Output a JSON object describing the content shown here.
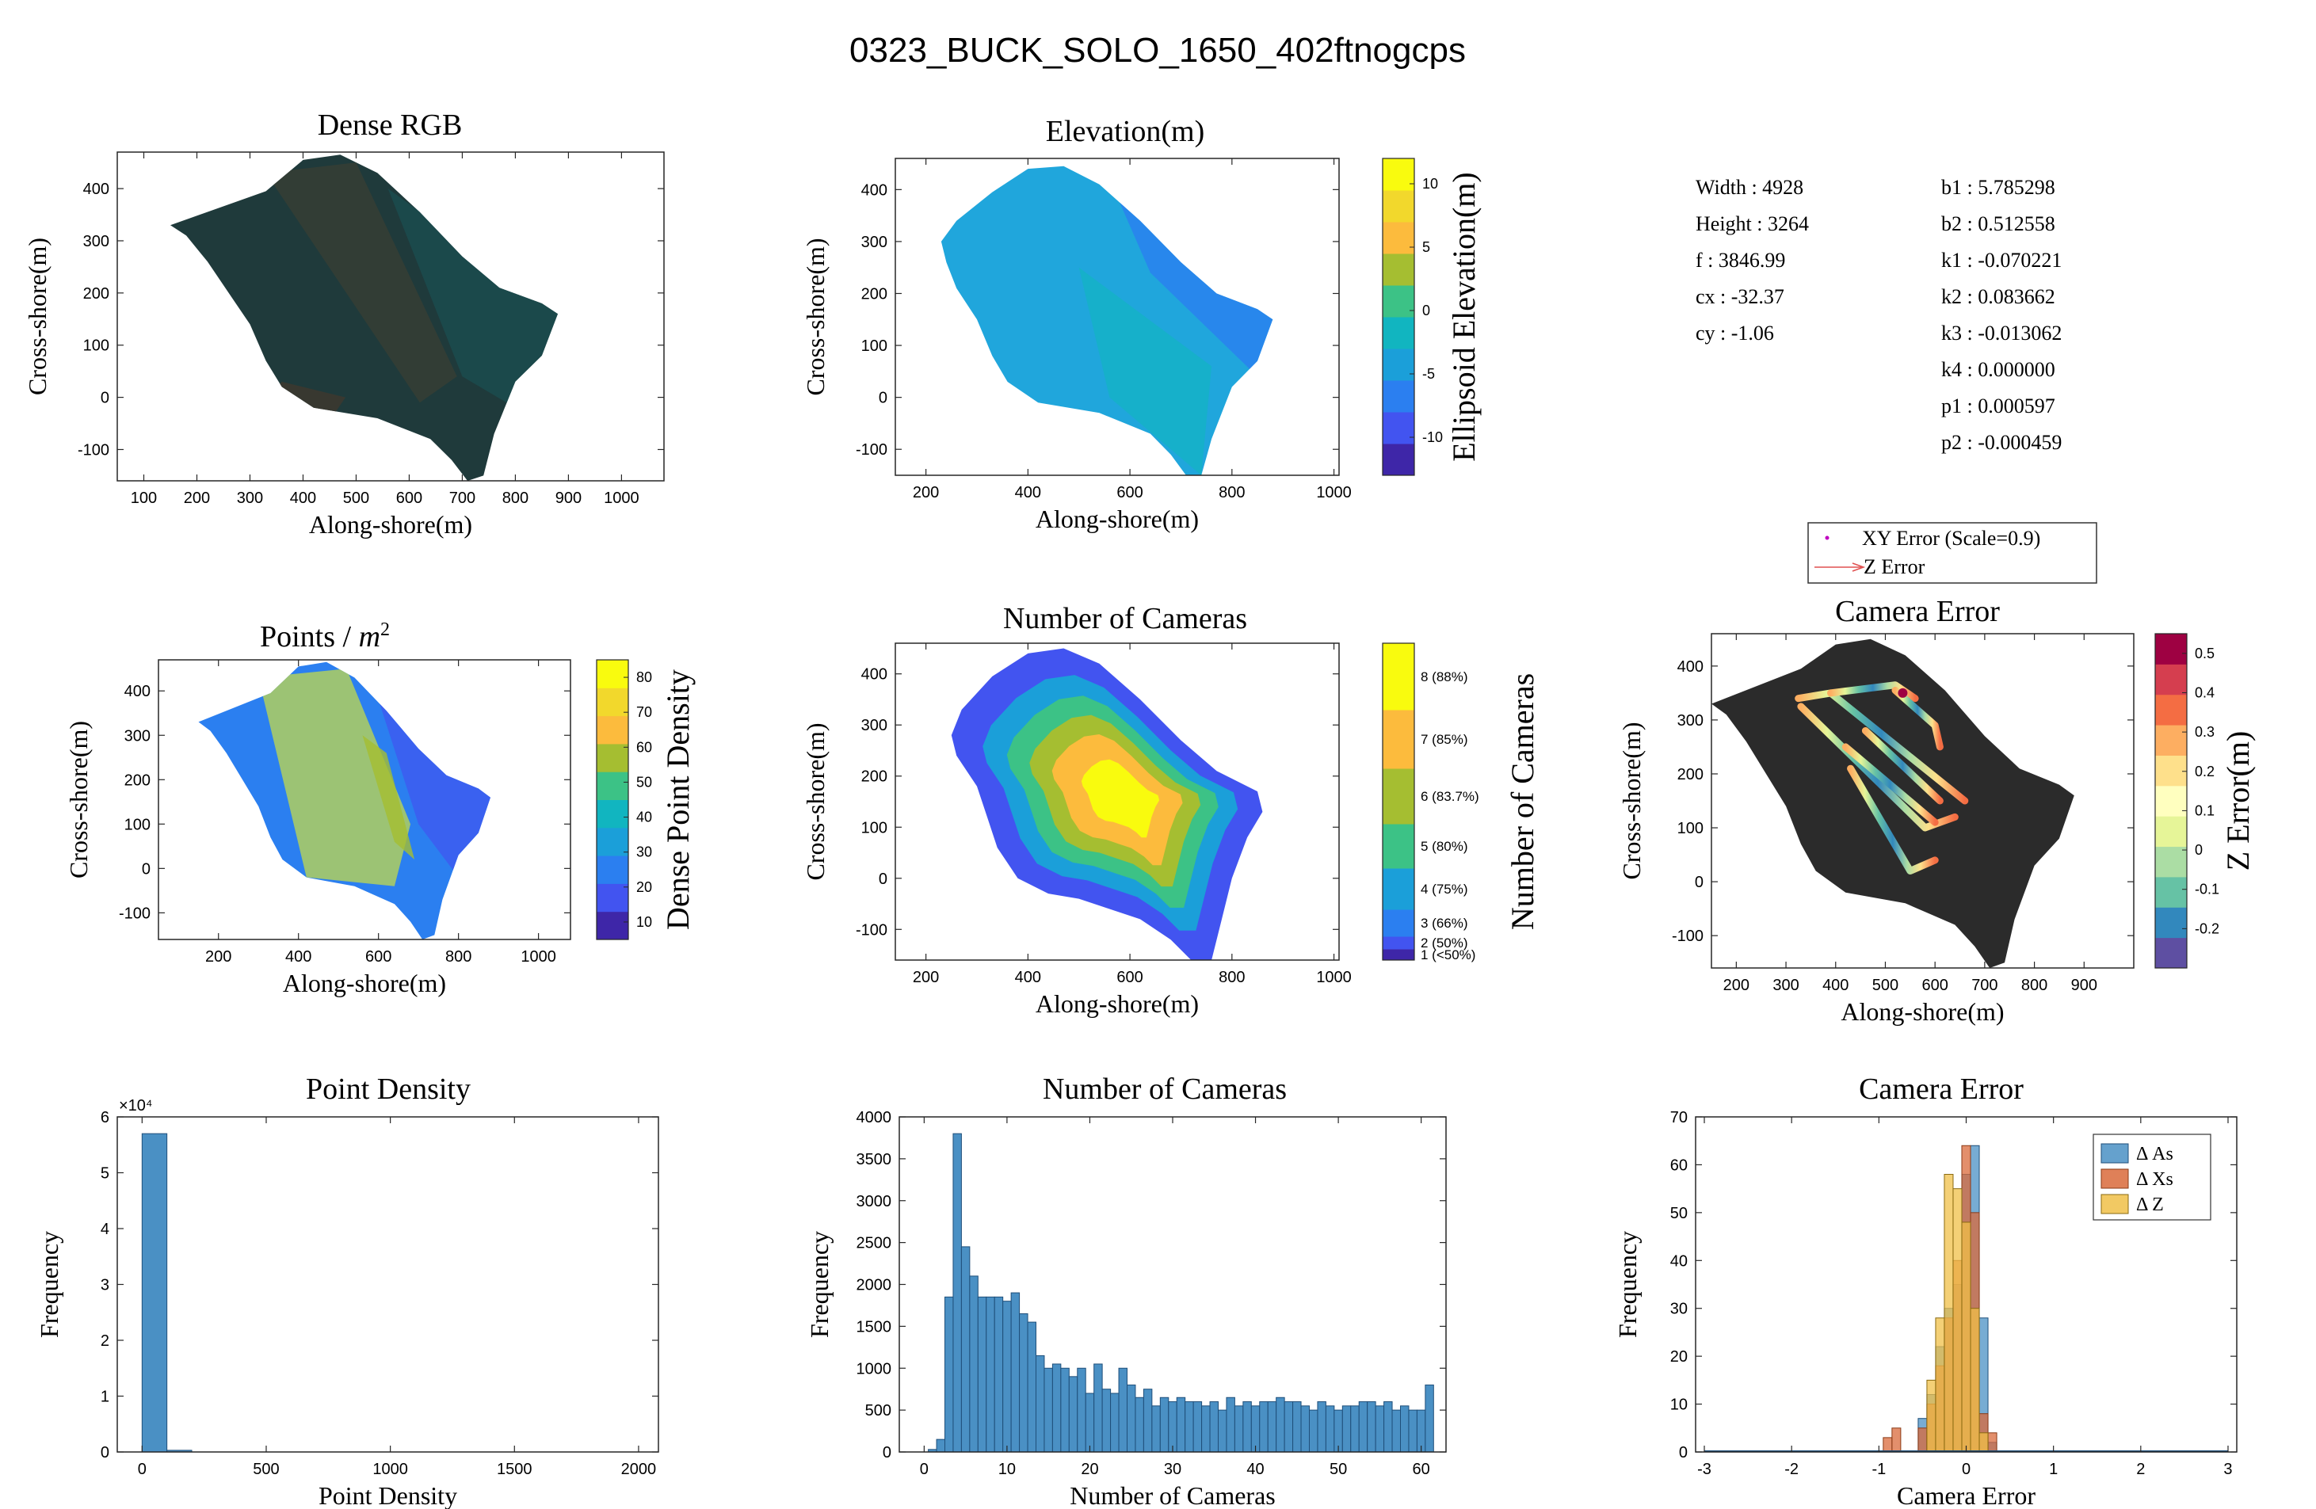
{
  "figure_title": "0323_BUCK_SOLO_1650_402ftnogcps",
  "colors": {
    "parula": [
      "#3e26a8",
      "#4254f0",
      "#2b7ff0",
      "#1b9fd9",
      "#11b5c0",
      "#3cc286",
      "#a5be31",
      "#fcbb3d",
      "#f2d82c",
      "#f9fb0e"
    ],
    "rdylbu": [
      "#5e4fa2",
      "#3288bd",
      "#66c2a5",
      "#abdda4",
      "#e6f598",
      "#ffffbf",
      "#fee08b",
      "#fdae61",
      "#f46d43",
      "#d53e4f",
      "#9e0142"
    ],
    "hist_as": "#4a90c4",
    "hist_xs": "#d96a3b",
    "hist_z": "#f0c048",
    "rgb_land": "#1f3a3b",
    "err_land": "#2b2b2b"
  },
  "params": {
    "left": [
      {
        "label": "Width : 4928"
      },
      {
        "label": "Height : 3264"
      },
      {
        "label": "f : 3846.99"
      },
      {
        "label": "cx : -32.37"
      },
      {
        "label": "cy : -1.06"
      }
    ],
    "right": [
      {
        "label": "b1 : 5.785298"
      },
      {
        "label": "b2 : 0.512558"
      },
      {
        "label": "k1 : -0.070221"
      },
      {
        "label": "k2 : 0.083662"
      },
      {
        "label": "k3 : -0.013062"
      },
      {
        "label": "k4 : 0.000000"
      },
      {
        "label": "p1 : 0.000597"
      },
      {
        "label": "p2 : -0.000459"
      }
    ]
  },
  "legend_cam_error": {
    "entries": [
      "XY Error (Scale=0.9)",
      "Z Error"
    ]
  },
  "chart_data": [
    {
      "id": "dense_rgb",
      "type": "heatmap",
      "title": "Dense RGB",
      "xlabel": "Along-shore(m)",
      "ylabel": "Cross-shore(m)",
      "xlim": [
        50,
        1080
      ],
      "ylim": [
        -160,
        470
      ],
      "xticks": [
        100,
        200,
        300,
        400,
        500,
        600,
        700,
        800,
        900,
        1000
      ],
      "yticks": [
        -100,
        0,
        100,
        200,
        300,
        400
      ],
      "outline_xy": [
        [
          330,
          395
        ],
        [
          400,
          455
        ],
        [
          470,
          465
        ],
        [
          540,
          430
        ],
        [
          620,
          355
        ],
        [
          700,
          270
        ],
        [
          770,
          210
        ],
        [
          850,
          180
        ],
        [
          880,
          160
        ],
        [
          850,
          80
        ],
        [
          800,
          30
        ],
        [
          760,
          -70
        ],
        [
          740,
          -150
        ],
        [
          710,
          -160
        ],
        [
          680,
          -120
        ],
        [
          640,
          -80
        ],
        [
          590,
          -60
        ],
        [
          540,
          -40
        ],
        [
          480,
          -30
        ],
        [
          420,
          -20
        ],
        [
          360,
          20
        ],
        [
          330,
          70
        ],
        [
          300,
          140
        ],
        [
          260,
          200
        ],
        [
          220,
          260
        ],
        [
          180,
          310
        ],
        [
          150,
          330
        ]
      ]
    },
    {
      "id": "elevation",
      "type": "heatmap",
      "title": "Elevation(m)",
      "xlabel": "Along-shore(m)",
      "ylabel": "Cross-shore(m)",
      "xlim": [
        140,
        1010
      ],
      "ylim": [
        -150,
        460
      ],
      "xticks": [
        200,
        400,
        600,
        800,
        1000
      ],
      "yticks": [
        -100,
        0,
        100,
        200,
        300,
        400
      ],
      "colorbar": {
        "label": "Ellipsoid Elevation(m)",
        "ticks": [
          -10,
          -5,
          0,
          5,
          10
        ],
        "lim": [
          -13,
          12
        ]
      },
      "outline_xy": [
        [
          330,
          395
        ],
        [
          400,
          440
        ],
        [
          470,
          445
        ],
        [
          540,
          410
        ],
        [
          620,
          340
        ],
        [
          700,
          260
        ],
        [
          770,
          200
        ],
        [
          850,
          170
        ],
        [
          880,
          150
        ],
        [
          850,
          70
        ],
        [
          800,
          20
        ],
        [
          760,
          -80
        ],
        [
          740,
          -150
        ],
        [
          710,
          -150
        ],
        [
          680,
          -110
        ],
        [
          640,
          -70
        ],
        [
          590,
          -50
        ],
        [
          540,
          -30
        ],
        [
          480,
          -20
        ],
        [
          420,
          -10
        ],
        [
          360,
          30
        ],
        [
          330,
          80
        ],
        [
          300,
          150
        ],
        [
          260,
          210
        ],
        [
          240,
          260
        ],
        [
          230,
          300
        ],
        [
          260,
          340
        ]
      ]
    },
    {
      "id": "points_per_m2",
      "type": "heatmap",
      "title": "Points / m²",
      "xlabel": "Along-shore(m)",
      "ylabel": "Cross-shore(m)",
      "xlim": [
        50,
        1080
      ],
      "ylim": [
        -160,
        470
      ],
      "xticks": [
        200,
        400,
        600,
        800,
        1000
      ],
      "yticks": [
        -100,
        0,
        100,
        200,
        300,
        400
      ],
      "colorbar": {
        "label": "Dense Point Density",
        "ticks": [
          10,
          20,
          30,
          40,
          50,
          60,
          70,
          80
        ],
        "lim": [
          5,
          85
        ]
      },
      "outline_xy": [
        [
          330,
          395
        ],
        [
          400,
          455
        ],
        [
          470,
          465
        ],
        [
          540,
          430
        ],
        [
          620,
          355
        ],
        [
          700,
          270
        ],
        [
          770,
          210
        ],
        [
          850,
          180
        ],
        [
          880,
          160
        ],
        [
          850,
          80
        ],
        [
          800,
          30
        ],
        [
          760,
          -70
        ],
        [
          740,
          -150
        ],
        [
          710,
          -160
        ],
        [
          680,
          -120
        ],
        [
          640,
          -80
        ],
        [
          590,
          -60
        ],
        [
          540,
          -40
        ],
        [
          480,
          -30
        ],
        [
          420,
          -20
        ],
        [
          360,
          20
        ],
        [
          330,
          70
        ],
        [
          300,
          140
        ],
        [
          260,
          200
        ],
        [
          220,
          260
        ],
        [
          180,
          310
        ],
        [
          150,
          330
        ]
      ]
    },
    {
      "id": "num_cameras_map",
      "type": "heatmap",
      "title": "Number of Cameras",
      "xlabel": "Along-shore(m)",
      "ylabel": "Cross-shore(m)",
      "xlim": [
        140,
        1010
      ],
      "ylim": [
        -160,
        460
      ],
      "xticks": [
        200,
        400,
        600,
        800,
        1000
      ],
      "yticks": [
        -100,
        0,
        100,
        200,
        300,
        400
      ],
      "colorbar": {
        "label": "Number of Cameras",
        "ticks": [
          "1 (<50%)",
          "2 (50%)",
          "3 (66%)",
          "4 (75%)",
          "5 (80%)",
          "6 (83.7%)",
          "7 (85%)",
          "8 (88%)"
        ]
      },
      "outline_xy": [
        [
          330,
          395
        ],
        [
          400,
          440
        ],
        [
          470,
          450
        ],
        [
          540,
          420
        ],
        [
          620,
          350
        ],
        [
          700,
          270
        ],
        [
          770,
          210
        ],
        [
          850,
          170
        ],
        [
          860,
          130
        ],
        [
          830,
          80
        ],
        [
          800,
          0
        ],
        [
          780,
          -80
        ],
        [
          760,
          -160
        ],
        [
          720,
          -160
        ],
        [
          680,
          -120
        ],
        [
          620,
          -80
        ],
        [
          560,
          -60
        ],
        [
          500,
          -40
        ],
        [
          440,
          -30
        ],
        [
          380,
          0
        ],
        [
          340,
          60
        ],
        [
          320,
          120
        ],
        [
          300,
          180
        ],
        [
          260,
          240
        ],
        [
          250,
          280
        ],
        [
          270,
          330
        ]
      ],
      "centroid": [
        590,
        160
      ]
    },
    {
      "id": "camera_error_map",
      "type": "scatter",
      "title": "Camera Error",
      "xlabel": "Along-shore(m)",
      "ylabel": "Cross-shore(m)",
      "xlim": [
        150,
        1000
      ],
      "ylim": [
        -160,
        460
      ],
      "xticks": [
        200,
        300,
        400,
        500,
        600,
        700,
        800,
        900
      ],
      "yticks": [
        -100,
        0,
        100,
        200,
        300,
        400
      ],
      "colorbar": {
        "label": "Z Error(m)",
        "ticks": [
          -0.2,
          -0.1,
          0,
          0.1,
          0.2,
          0.3,
          0.4,
          0.5
        ],
        "lim": [
          -0.3,
          0.55
        ]
      },
      "outline_xy": [
        [
          330,
          395
        ],
        [
          400,
          440
        ],
        [
          470,
          450
        ],
        [
          540,
          420
        ],
        [
          620,
          355
        ],
        [
          700,
          270
        ],
        [
          770,
          210
        ],
        [
          850,
          180
        ],
        [
          880,
          160
        ],
        [
          850,
          80
        ],
        [
          800,
          30
        ],
        [
          760,
          -70
        ],
        [
          740,
          -150
        ],
        [
          710,
          -160
        ],
        [
          680,
          -120
        ],
        [
          640,
          -80
        ],
        [
          590,
          -60
        ],
        [
          540,
          -40
        ],
        [
          480,
          -30
        ],
        [
          420,
          -20
        ],
        [
          360,
          20
        ],
        [
          330,
          70
        ],
        [
          300,
          140
        ],
        [
          260,
          200
        ],
        [
          220,
          260
        ],
        [
          180,
          310
        ],
        [
          150,
          330
        ]
      ],
      "flight_lines": [
        [
          [
            325,
            340
          ],
          [
            390,
            350
          ],
          [
            660,
            150
          ]
        ],
        [
          [
            330,
            325
          ],
          [
            580,
            100
          ],
          [
            640,
            120
          ]
        ],
        [
          [
            390,
            350
          ],
          [
            520,
            365
          ],
          [
            560,
            340
          ]
        ],
        [
          [
            460,
            280
          ],
          [
            610,
            150
          ]
        ],
        [
          [
            420,
            250
          ],
          [
            600,
            110
          ]
        ],
        [
          [
            430,
            210
          ],
          [
            550,
            20
          ],
          [
            600,
            40
          ]
        ],
        [
          [
            520,
            355
          ],
          [
            600,
            290
          ],
          [
            610,
            250
          ]
        ]
      ]
    },
    {
      "id": "hist_point_density",
      "type": "bar",
      "title": "Point Density",
      "xlabel": "Point Density",
      "ylabel": "Frequency",
      "xlim": [
        -100,
        2080
      ],
      "ylim": [
        0,
        60000
      ],
      "xticks": [
        0,
        500,
        1000,
        1500,
        2000
      ],
      "yticks": [
        0,
        10000,
        20000,
        30000,
        40000,
        50000,
        60000
      ],
      "ytick_labels": [
        "0",
        "1",
        "2",
        "3",
        "4",
        "5",
        "6"
      ],
      "exponent_label": "×10⁴",
      "bins": [
        [
          0,
          100,
          57000
        ],
        [
          100,
          200,
          300
        ]
      ]
    },
    {
      "id": "hist_num_cameras",
      "type": "bar",
      "title": "Number of Cameras",
      "xlabel": "Number of Cameras",
      "ylabel": "Frequency",
      "xlim": [
        -3,
        63
      ],
      "ylim": [
        0,
        4000
      ],
      "xticks": [
        0,
        10,
        20,
        30,
        40,
        50,
        60
      ],
      "yticks": [
        0,
        500,
        1000,
        1500,
        2000,
        2500,
        3000,
        3500,
        4000
      ],
      "bin_start": 1,
      "bin_width": 1,
      "values": [
        30,
        150,
        1850,
        3800,
        2450,
        2100,
        1850,
        1850,
        1850,
        1800,
        1900,
        1650,
        1550,
        1150,
        1000,
        1050,
        1000,
        900,
        1000,
        700,
        1050,
        750,
        700,
        1000,
        800,
        650,
        750,
        550,
        650,
        600,
        650,
        600,
        600,
        550,
        600,
        500,
        650,
        550,
        600,
        550,
        600,
        600,
        650,
        600,
        600,
        550,
        500,
        600,
        550,
        500,
        550,
        550,
        600,
        600,
        550,
        600,
        500,
        550,
        500,
        500,
        800
      ]
    },
    {
      "id": "hist_camera_error",
      "type": "bar",
      "title": "Camera Error",
      "xlabel": "Camera Error",
      "ylabel": "Frequency",
      "xlim": [
        -3.1,
        3.1
      ],
      "ylim": [
        0,
        70
      ],
      "xticks": [
        -3,
        -2,
        -1,
        0,
        1,
        2,
        3
      ],
      "yticks": [
        0,
        10,
        20,
        30,
        40,
        50,
        60,
        70
      ],
      "bin_width": 0.1,
      "series": [
        {
          "name": "Δ As",
          "bins": [
            [
              -0.5,
              7
            ],
            [
              -0.4,
              12
            ],
            [
              -0.3,
              22
            ],
            [
              -0.2,
              30
            ],
            [
              -0.1,
              35
            ],
            [
              0.0,
              58
            ],
            [
              0.1,
              64
            ],
            [
              0.2,
              28
            ],
            [
              0.3,
              2
            ]
          ]
        },
        {
          "name": "Δ Xs",
          "bins": [
            [
              -0.9,
              3
            ],
            [
              -0.8,
              5
            ],
            [
              -0.5,
              5
            ],
            [
              -0.4,
              10
            ],
            [
              -0.3,
              18
            ],
            [
              -0.2,
              28
            ],
            [
              -0.1,
              40
            ],
            [
              0.0,
              64
            ],
            [
              0.1,
              50
            ],
            [
              0.2,
              8
            ],
            [
              0.3,
              4
            ]
          ]
        },
        {
          "name": "Δ Z",
          "bins": [
            [
              -0.4,
              15
            ],
            [
              -0.3,
              28
            ],
            [
              -0.2,
              58
            ],
            [
              -0.1,
              55
            ],
            [
              0.0,
              48
            ],
            [
              0.1,
              30
            ],
            [
              0.2,
              4
            ]
          ]
        }
      ]
    }
  ]
}
